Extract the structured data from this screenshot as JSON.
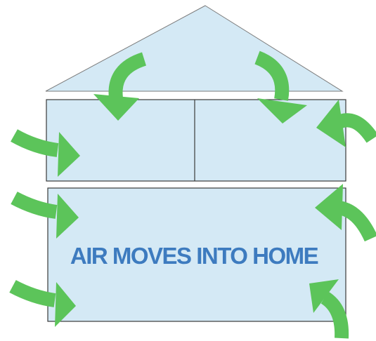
{
  "label": "AIR MOVES INTO HOME"
}
